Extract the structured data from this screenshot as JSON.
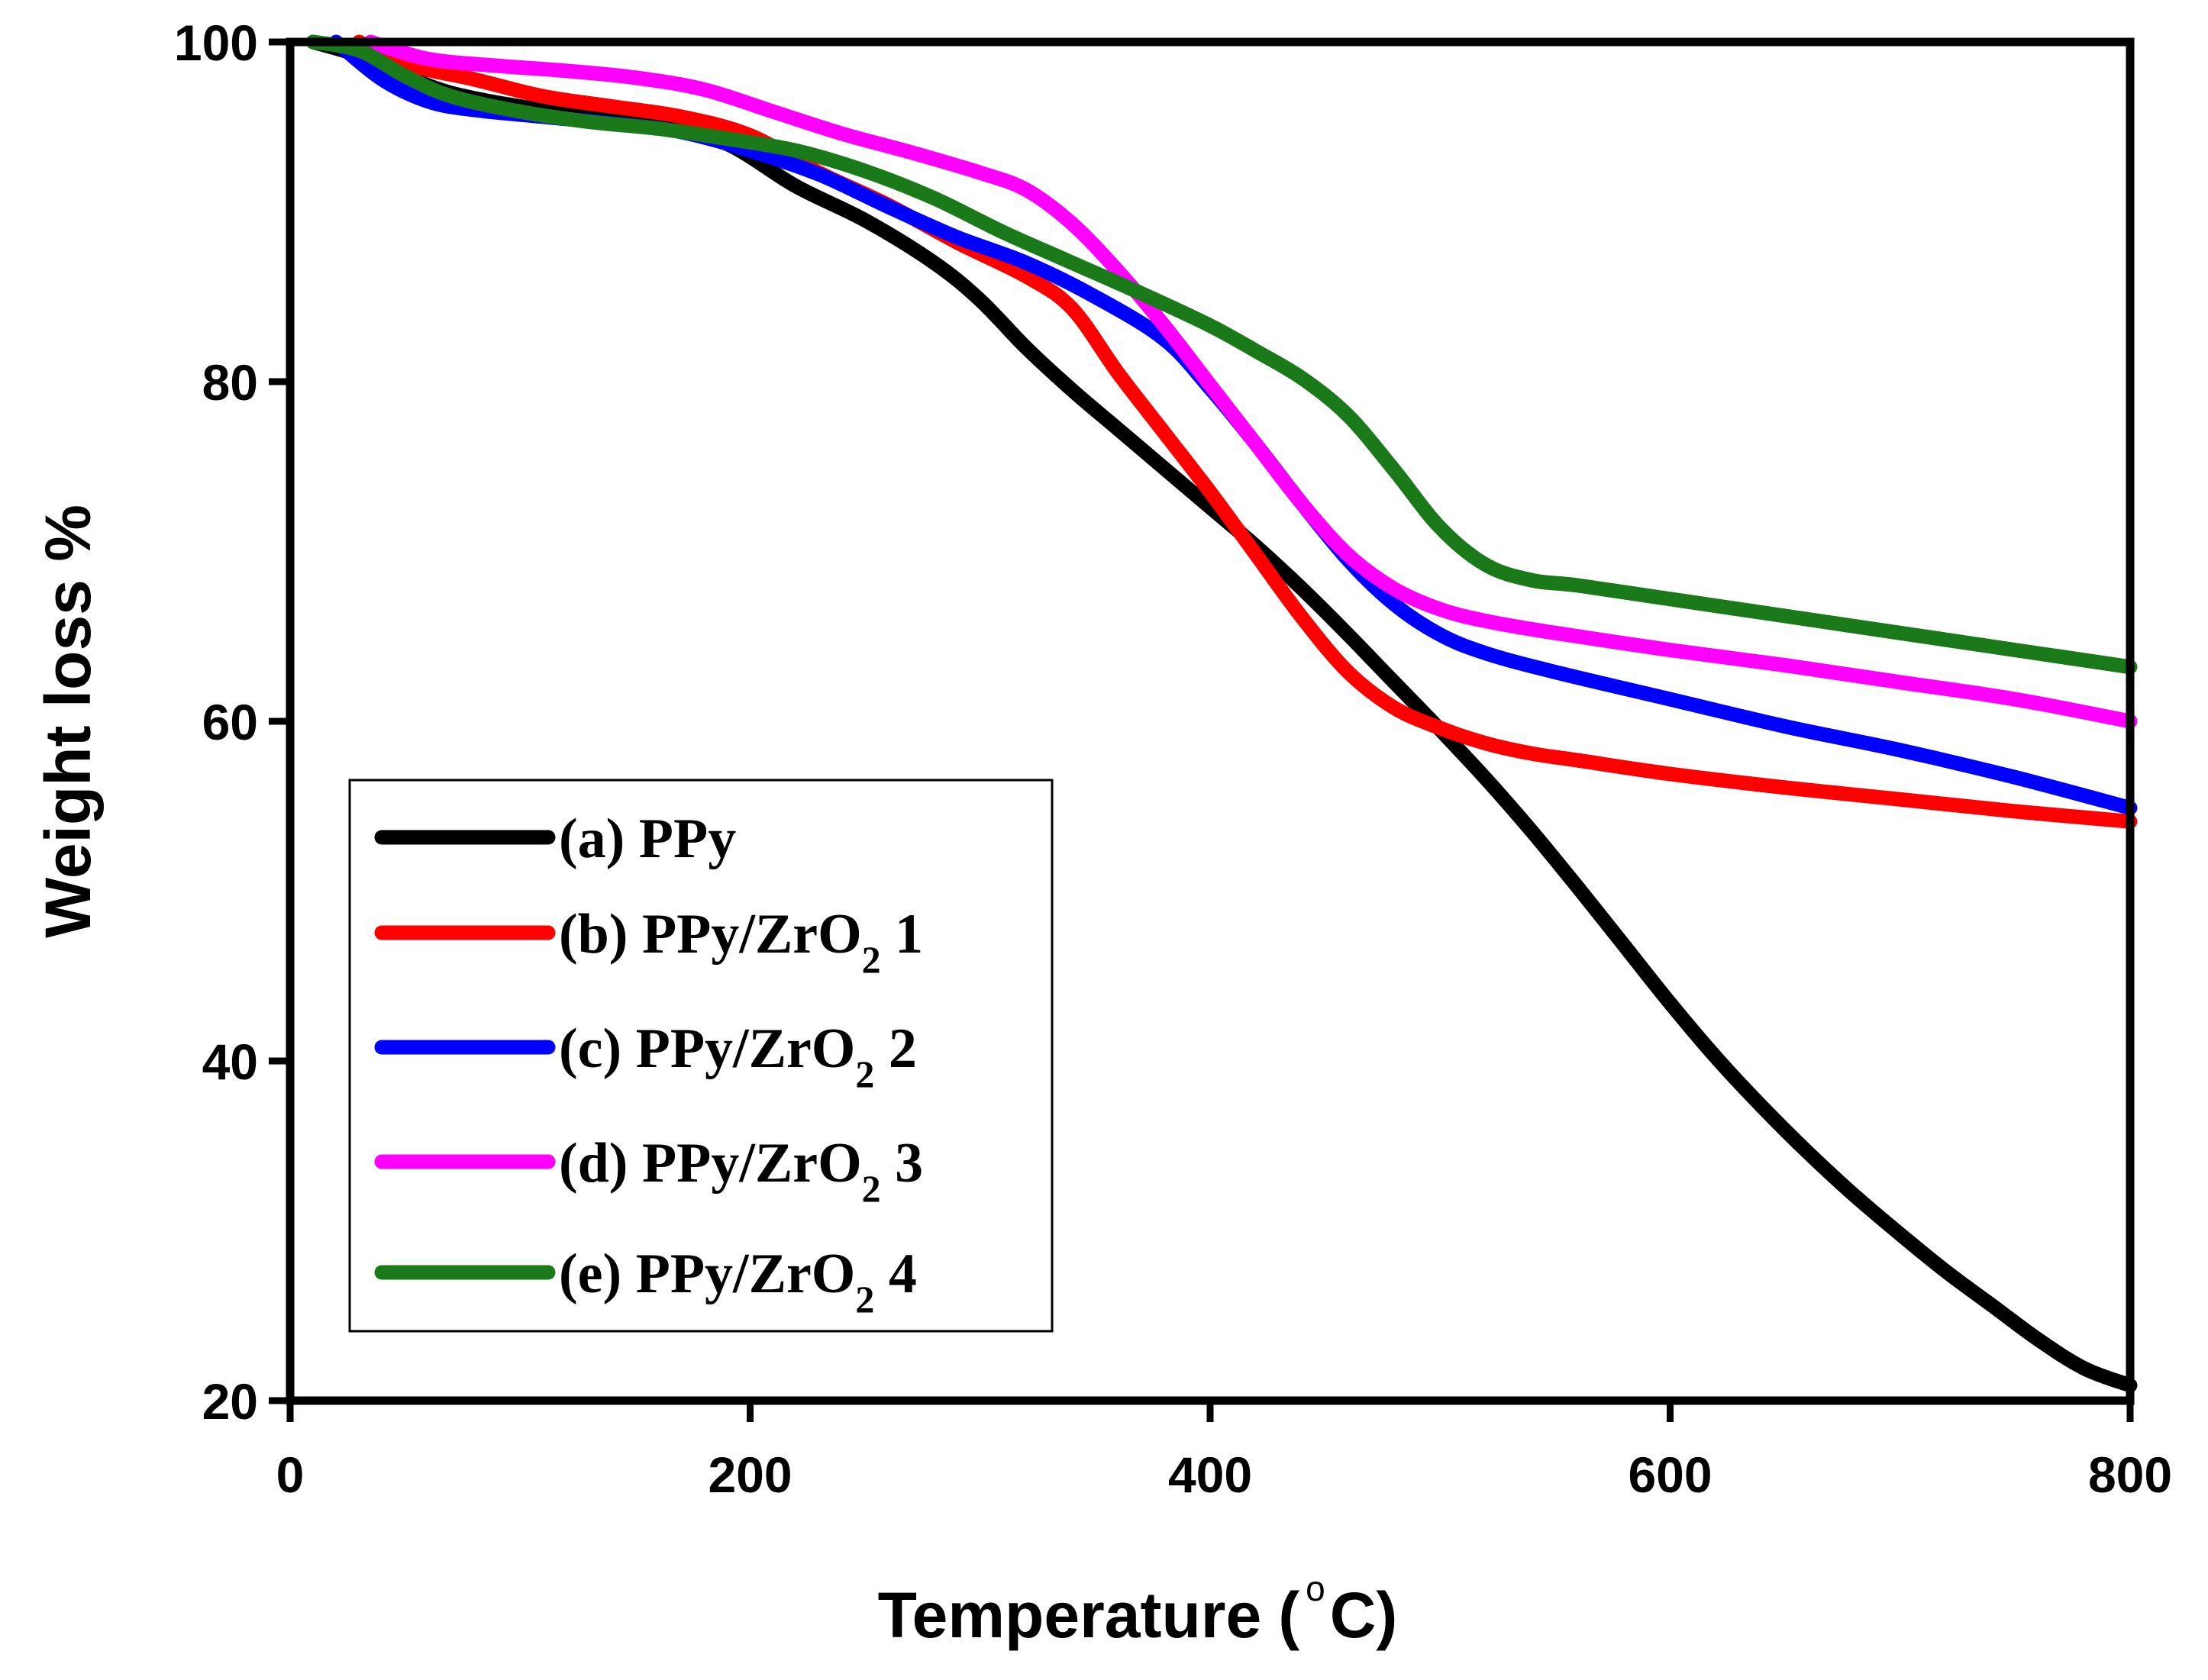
{
  "chart_data": {
    "type": "line",
    "title": "",
    "xlabel": "Temperature",
    "xlabel_unit_prefix": "(",
    "xlabel_degree": "o",
    "xlabel_unit": "C)",
    "ylabel": "Weight loss %",
    "xlim": [
      0,
      800
    ],
    "ylim": [
      20,
      100
    ],
    "xticks": [
      0,
      200,
      400,
      600,
      800
    ],
    "yticks": [
      20,
      40,
      60,
      80,
      100
    ],
    "grid": false,
    "legend_position": "bottom-left",
    "series": [
      {
        "id": "a",
        "name": "(a) PPy",
        "legend_main": "(a) PPy",
        "legend_sub": "",
        "legend_suffix": "",
        "color": "#000000",
        "x": [
          10,
          30,
          50,
          70,
          100,
          130,
          160,
          190,
          220,
          250,
          280,
          300,
          320,
          340,
          360,
          380,
          400,
          420,
          440,
          460,
          480,
          500,
          520,
          540,
          560,
          580,
          600,
          620,
          640,
          660,
          680,
          700,
          720,
          740,
          760,
          780,
          800
        ],
        "y": [
          100,
          99.2,
          98,
          97,
          96.2,
          95.7,
          95.2,
          94,
          91.5,
          89.5,
          87,
          84.8,
          82,
          79.5,
          77.2,
          74.9,
          72.6,
          70.3,
          67.8,
          65.1,
          62.3,
          59.5,
          56.6,
          53.5,
          50.2,
          46.8,
          43.4,
          40.2,
          37.3,
          34.6,
          32.1,
          29.8,
          27.6,
          25.6,
          23.6,
          21.9,
          20.9
        ]
      },
      {
        "id": "b",
        "name": "(b) PPy/ZrO2 1",
        "legend_main": "(b) PPy/ZrO",
        "legend_sub": "2",
        "legend_suffix": " 1",
        "color": "#ff0000",
        "x": [
          30,
          50,
          80,
          110,
          140,
          170,
          200,
          230,
          260,
          290,
          320,
          340,
          360,
          380,
          400,
          420,
          440,
          460,
          480,
          500,
          520,
          540,
          560,
          600,
          650,
          700,
          750,
          800
        ],
        "y": [
          100,
          98.7,
          97.8,
          96.8,
          96.2,
          95.6,
          94.5,
          92.3,
          90.4,
          88.2,
          86.2,
          84.3,
          80.5,
          77.0,
          73.5,
          69.8,
          66.1,
          62.9,
          60.8,
          59.6,
          58.7,
          58.1,
          57.7,
          56.9,
          56.1,
          55.4,
          54.7,
          54.1
        ]
      },
      {
        "id": "c",
        "name": "(c) PPy/ZrO2 2",
        "legend_main": "(c) PPy/ZrO",
        "legend_sub": "2",
        "legend_suffix": " 2",
        "color": "#0000ff",
        "x": [
          20,
          40,
          60,
          80,
          110,
          140,
          170,
          200,
          230,
          260,
          290,
          320,
          350,
          380,
          400,
          420,
          440,
          460,
          480,
          500,
          520,
          550,
          600,
          650,
          700,
          750,
          800
        ],
        "y": [
          100,
          97.8,
          96.5,
          96.0,
          95.6,
          95.2,
          94.7,
          93.6,
          92.2,
          90.3,
          88.5,
          87.0,
          85.0,
          82.5,
          79.6,
          76.3,
          72.8,
          69.5,
          66.9,
          65.1,
          64.0,
          62.9,
          61.3,
          59.7,
          58.3,
          56.7,
          54.9
        ]
      },
      {
        "id": "d",
        "name": "(d) PPy/ZrO2 3",
        "legend_main": "(d) PPy/ZrO",
        "legend_sub": "2",
        "legend_suffix": " 3",
        "color": "#ff00ff",
        "x": [
          35,
          60,
          90,
          120,
          150,
          180,
          210,
          240,
          270,
          300,
          320,
          340,
          360,
          380,
          400,
          420,
          440,
          460,
          480,
          500,
          520,
          550,
          600,
          650,
          700,
          750,
          800
        ],
        "y": [
          100,
          99.0,
          98.6,
          98.3,
          97.9,
          97.2,
          95.9,
          94.6,
          93.5,
          92.3,
          91.3,
          89.3,
          86.5,
          83.3,
          79.8,
          76.3,
          72.8,
          69.8,
          67.8,
          66.6,
          65.9,
          65.2,
          64.2,
          63.3,
          62.3,
          61.3,
          60.0
        ]
      },
      {
        "id": "e",
        "name": "(e) PPy/ZrO2 4",
        "legend_main": "(e) PPy/ZrO",
        "legend_sub": "2",
        "legend_suffix": " 4",
        "color": "#1a7a1a",
        "x": [
          10,
          30,
          50,
          70,
          100,
          130,
          160,
          190,
          220,
          250,
          280,
          310,
          340,
          370,
          400,
          420,
          440,
          460,
          480,
          500,
          520,
          540,
          560,
          600,
          650,
          700,
          750,
          800
        ],
        "y": [
          100,
          99.5,
          98.0,
          96.8,
          95.9,
          95.3,
          94.9,
          94.3,
          93.6,
          92.4,
          90.8,
          88.8,
          87.0,
          85.2,
          83.3,
          81.8,
          80.2,
          78.0,
          74.8,
          71.4,
          69.2,
          68.3,
          68.0,
          67.2,
          66.2,
          65.2,
          64.2,
          63.2
        ]
      }
    ]
  }
}
